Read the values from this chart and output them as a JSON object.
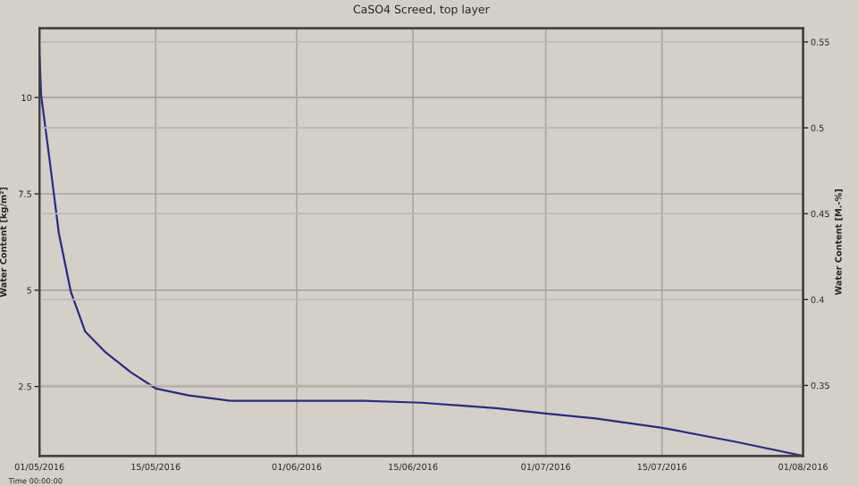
{
  "chart_data": {
    "type": "line",
    "title": "CaSO4 Screed, top layer",
    "ylabel": "Water Content [kg/m²]",
    "y2label": "Water Content [M.-%]",
    "x": [
      "2016-05-01T00:00",
      "2016-05-01T05:00",
      "2016-05-02T06:00",
      "2016-05-03T08:00",
      "2016-05-04T19:00",
      "2016-05-06T12:00",
      "2016-05-09",
      "2016-05-12",
      "2016-05-15",
      "2016-05-19",
      "2016-05-24",
      "2016-06-01",
      "2016-06-09",
      "2016-06-16",
      "2016-06-25",
      "2016-07-01",
      "2016-07-07",
      "2016-07-15",
      "2016-07-24",
      "2016-08-01"
    ],
    "series": [
      {
        "color": "#2a2a8a",
        "values": [
          11.1,
          10.05,
          8.33,
          6.48,
          4.95,
          3.93,
          3.38,
          2.87,
          2.45,
          2.27,
          2.13,
          2.13,
          2.13,
          2.08,
          1.94,
          1.8,
          1.67,
          1.43,
          1.06,
          0.7
        ]
      }
    ],
    "xlim": [
      "2016-05-01",
      "2016-08-01"
    ],
    "xticks": [
      {
        "value": "2016-05-01",
        "label": "01/05/2016"
      },
      {
        "value": "2016-05-15",
        "label": "15/05/2016"
      },
      {
        "value": "2016-06-01",
        "label": "01/06/2016"
      },
      {
        "value": "2016-06-15",
        "label": "15/06/2016"
      },
      {
        "value": "2016-07-01",
        "label": "01/07/2016"
      },
      {
        "value": "2016-07-15",
        "label": "15/07/2016"
      },
      {
        "value": "2016-08-01",
        "label": "01/08/2016"
      }
    ],
    "ylim": [
      0.7,
      11.8
    ],
    "yticks": [
      2.5,
      5,
      7.5,
      10
    ],
    "y2lim": [
      0.309,
      0.558
    ],
    "y2ticks": [
      0.35,
      0.4,
      0.45,
      0.5,
      0.55
    ],
    "grid": true,
    "line_style": "solid",
    "marker": "none",
    "annotations": [
      "Time 00:00:00"
    ]
  }
}
